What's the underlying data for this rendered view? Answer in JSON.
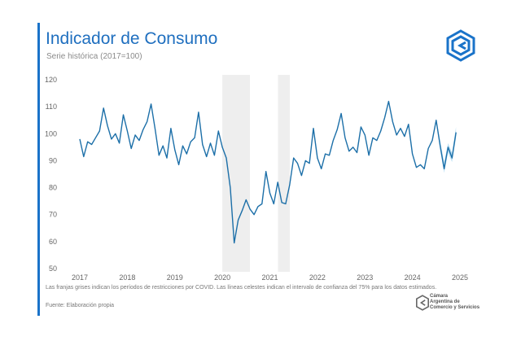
{
  "header": {
    "title": "Indicador de Consumo",
    "subtitle": "Serie histórica (2017=100)"
  },
  "footer": {
    "note": "Las franjas grises indican los períodos de restricciones por COVID. Las líneas celestes indican el intervalo de confianza del 75% para los datos estimados.",
    "source": "Fuente: Elaboración propia",
    "brand_line1": "Cámara",
    "brand_line2": "Argentina de",
    "brand_line3": "Comercio y Servicios"
  },
  "colors": {
    "line": "#1c6fa8",
    "band": "#eeeeee",
    "accent": "#1a73c9"
  },
  "icons": [
    "cac-logo-icon",
    "cac-brand-icon"
  ],
  "chart_data": {
    "type": "line",
    "title": "Indicador de Consumo",
    "subtitle": "Serie histórica (2017=100)",
    "xlabel": "",
    "ylabel": "",
    "xlim": [
      2017.0,
      2025.0
    ],
    "ylim": [
      50,
      120
    ],
    "yticks": [
      50,
      60,
      70,
      80,
      90,
      100,
      110,
      120
    ],
    "xticks": [
      "2017",
      "2018",
      "2019",
      "2020",
      "2021",
      "2022",
      "2023",
      "2024",
      "2025"
    ],
    "grid": false,
    "shaded_periods": [
      [
        2020.0,
        2020.58
      ],
      [
        2021.17,
        2021.42
      ]
    ],
    "series": [
      {
        "x": [
          2017.0,
          2017.083,
          2017.167,
          2017.25,
          2017.333,
          2017.417,
          2017.5,
          2017.583,
          2017.667,
          2017.75,
          2017.833,
          2017.917,
          2018.0,
          2018.083,
          2018.167,
          2018.25,
          2018.333,
          2018.417,
          2018.5,
          2018.583,
          2018.667,
          2018.75,
          2018.833,
          2018.917,
          2019.0,
          2019.083,
          2019.167,
          2019.25,
          2019.333,
          2019.417,
          2019.5,
          2019.583,
          2019.667,
          2019.75,
          2019.833,
          2019.917,
          2020.0,
          2020.083,
          2020.167,
          2020.25,
          2020.333,
          2020.417,
          2020.5,
          2020.583,
          2020.667,
          2020.75,
          2020.833,
          2020.917,
          2021.0,
          2021.083,
          2021.167,
          2021.25,
          2021.333,
          2021.417,
          2021.5,
          2021.583,
          2021.667,
          2021.75,
          2021.833,
          2021.917,
          2022.0,
          2022.083,
          2022.167,
          2022.25,
          2022.333,
          2022.417,
          2022.5,
          2022.583,
          2022.667,
          2022.75,
          2022.833,
          2022.917,
          2023.0,
          2023.083,
          2023.167,
          2023.25,
          2023.333,
          2023.417,
          2023.5,
          2023.583,
          2023.667,
          2023.75,
          2023.833,
          2023.917,
          2024.0,
          2024.083,
          2024.167,
          2024.25,
          2024.333,
          2024.417,
          2024.5,
          2024.583,
          2024.667,
          2024.75,
          2024.833,
          2024.917
        ],
        "values": [
          98,
          91.5,
          97,
          96,
          98.5,
          101,
          109.5,
          103,
          98,
          100,
          96.5,
          107,
          101,
          94.5,
          99.5,
          97.5,
          101.5,
          104.5,
          111,
          102,
          92,
          95.5,
          91,
          102,
          94,
          88.5,
          95.5,
          92.5,
          97,
          98.5,
          108,
          96,
          91.5,
          96.5,
          92,
          101,
          95,
          91,
          80,
          59.5,
          68,
          71.5,
          75.5,
          72,
          70,
          73,
          74,
          86,
          78,
          74,
          82,
          74.5,
          74,
          81,
          91,
          89,
          84.5,
          90,
          89,
          102,
          91,
          87,
          92.5,
          92,
          97.5,
          101.5,
          107.5,
          98.5,
          93.5,
          95,
          93,
          102.5,
          99.5,
          92,
          98.5,
          97.5,
          101,
          106,
          112,
          104.5,
          99.5,
          102,
          99,
          103.5,
          92.5,
          87.5,
          88.5,
          87,
          94.5,
          97.5,
          105,
          95.5,
          87,
          95,
          91,
          100.5
        ]
      }
    ],
    "confidence_band": {
      "x": [
        2024.5,
        2024.583,
        2024.667,
        2024.75,
        2024.833,
        2024.917
      ],
      "upper": [
        105.5,
        97.5,
        89.5,
        96.5,
        93,
        102.5
      ],
      "lower": [
        104.5,
        94,
        85.5,
        93,
        89.5,
        98.5
      ]
    }
  }
}
